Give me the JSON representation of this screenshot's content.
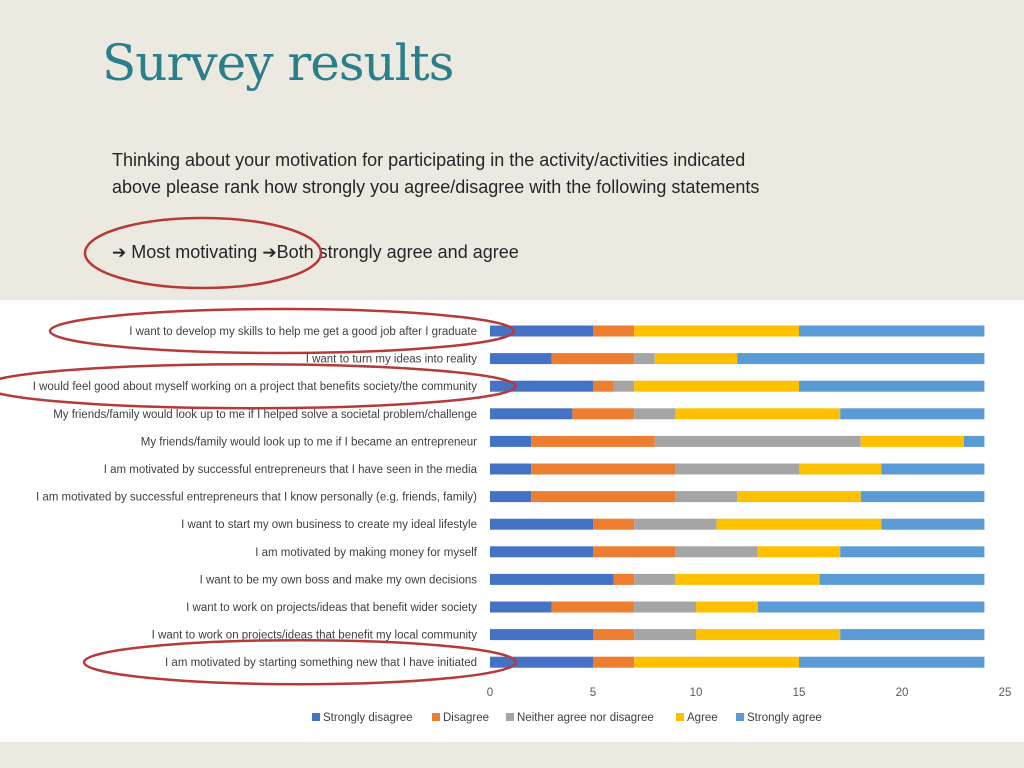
{
  "slide": {
    "title": "Survey results",
    "subtitle_line1": "Thinking about your motivation for participating in the activity/activities indicated",
    "subtitle_line2": "above please rank how strongly you agree/disagree with the following statements",
    "arrow_item1": "Most motivating",
    "arrow_item2": "Both strongly agree and agree"
  },
  "chart_data": {
    "type": "bar",
    "orientation": "horizontal",
    "stacked": true,
    "categories": [
      "I want to develop my skills to help me get a good job after I graduate",
      "I want to turn my ideas into reality",
      "I would feel good about myself working on a project that benefits society/the community",
      "My friends/family would look up to me if I helped solve a societal problem/challenge",
      "My friends/family would look up to me if I became an entrepreneur",
      "I am motivated by successful entrepreneurs that I have seen in the media",
      "I am motivated by successful entrepreneurs that I know personally (e.g. friends, family)",
      "I want to start my own business to create my ideal lifestyle",
      "I am motivated by making money for myself",
      "I want to be my own boss and make my own decisions",
      "I want to work on projects/ideas that benefit wider society",
      "I want to work on projects/ideas that benefit my local community",
      "I am motivated by starting something new that I have initiated"
    ],
    "series": [
      {
        "name": "Strongly disagree",
        "color": "#4472c4",
        "values": [
          5,
          3,
          5,
          4,
          2,
          2,
          2,
          5,
          5,
          6,
          3,
          5,
          5
        ]
      },
      {
        "name": "Disagree",
        "color": "#ed7d31",
        "values": [
          2,
          4,
          1,
          3,
          6,
          7,
          7,
          2,
          4,
          1,
          4,
          2,
          2
        ]
      },
      {
        "name": "Neither agree nor disagree",
        "color": "#a5a5a5",
        "values": [
          0,
          1,
          1,
          2,
          10,
          6,
          3,
          4,
          4,
          2,
          3,
          3,
          0
        ]
      },
      {
        "name": "Agree",
        "color": "#ffc000",
        "values": [
          8,
          4,
          8,
          8,
          5,
          4,
          6,
          8,
          4,
          7,
          3,
          7,
          8
        ]
      },
      {
        "name": "Strongly agree",
        "color": "#5b9bd5",
        "values": [
          9,
          12,
          9,
          7,
          1,
          5,
          6,
          5,
          7,
          8,
          11,
          7,
          9
        ]
      }
    ],
    "xlim": [
      0,
      25
    ],
    "xticks": [
      "0",
      "5",
      "10",
      "15",
      "20",
      "25"
    ],
    "legend_position": "bottom",
    "annotations": {
      "circled_rows": [
        0,
        2,
        12
      ],
      "circled_text": "Most motivating"
    }
  }
}
